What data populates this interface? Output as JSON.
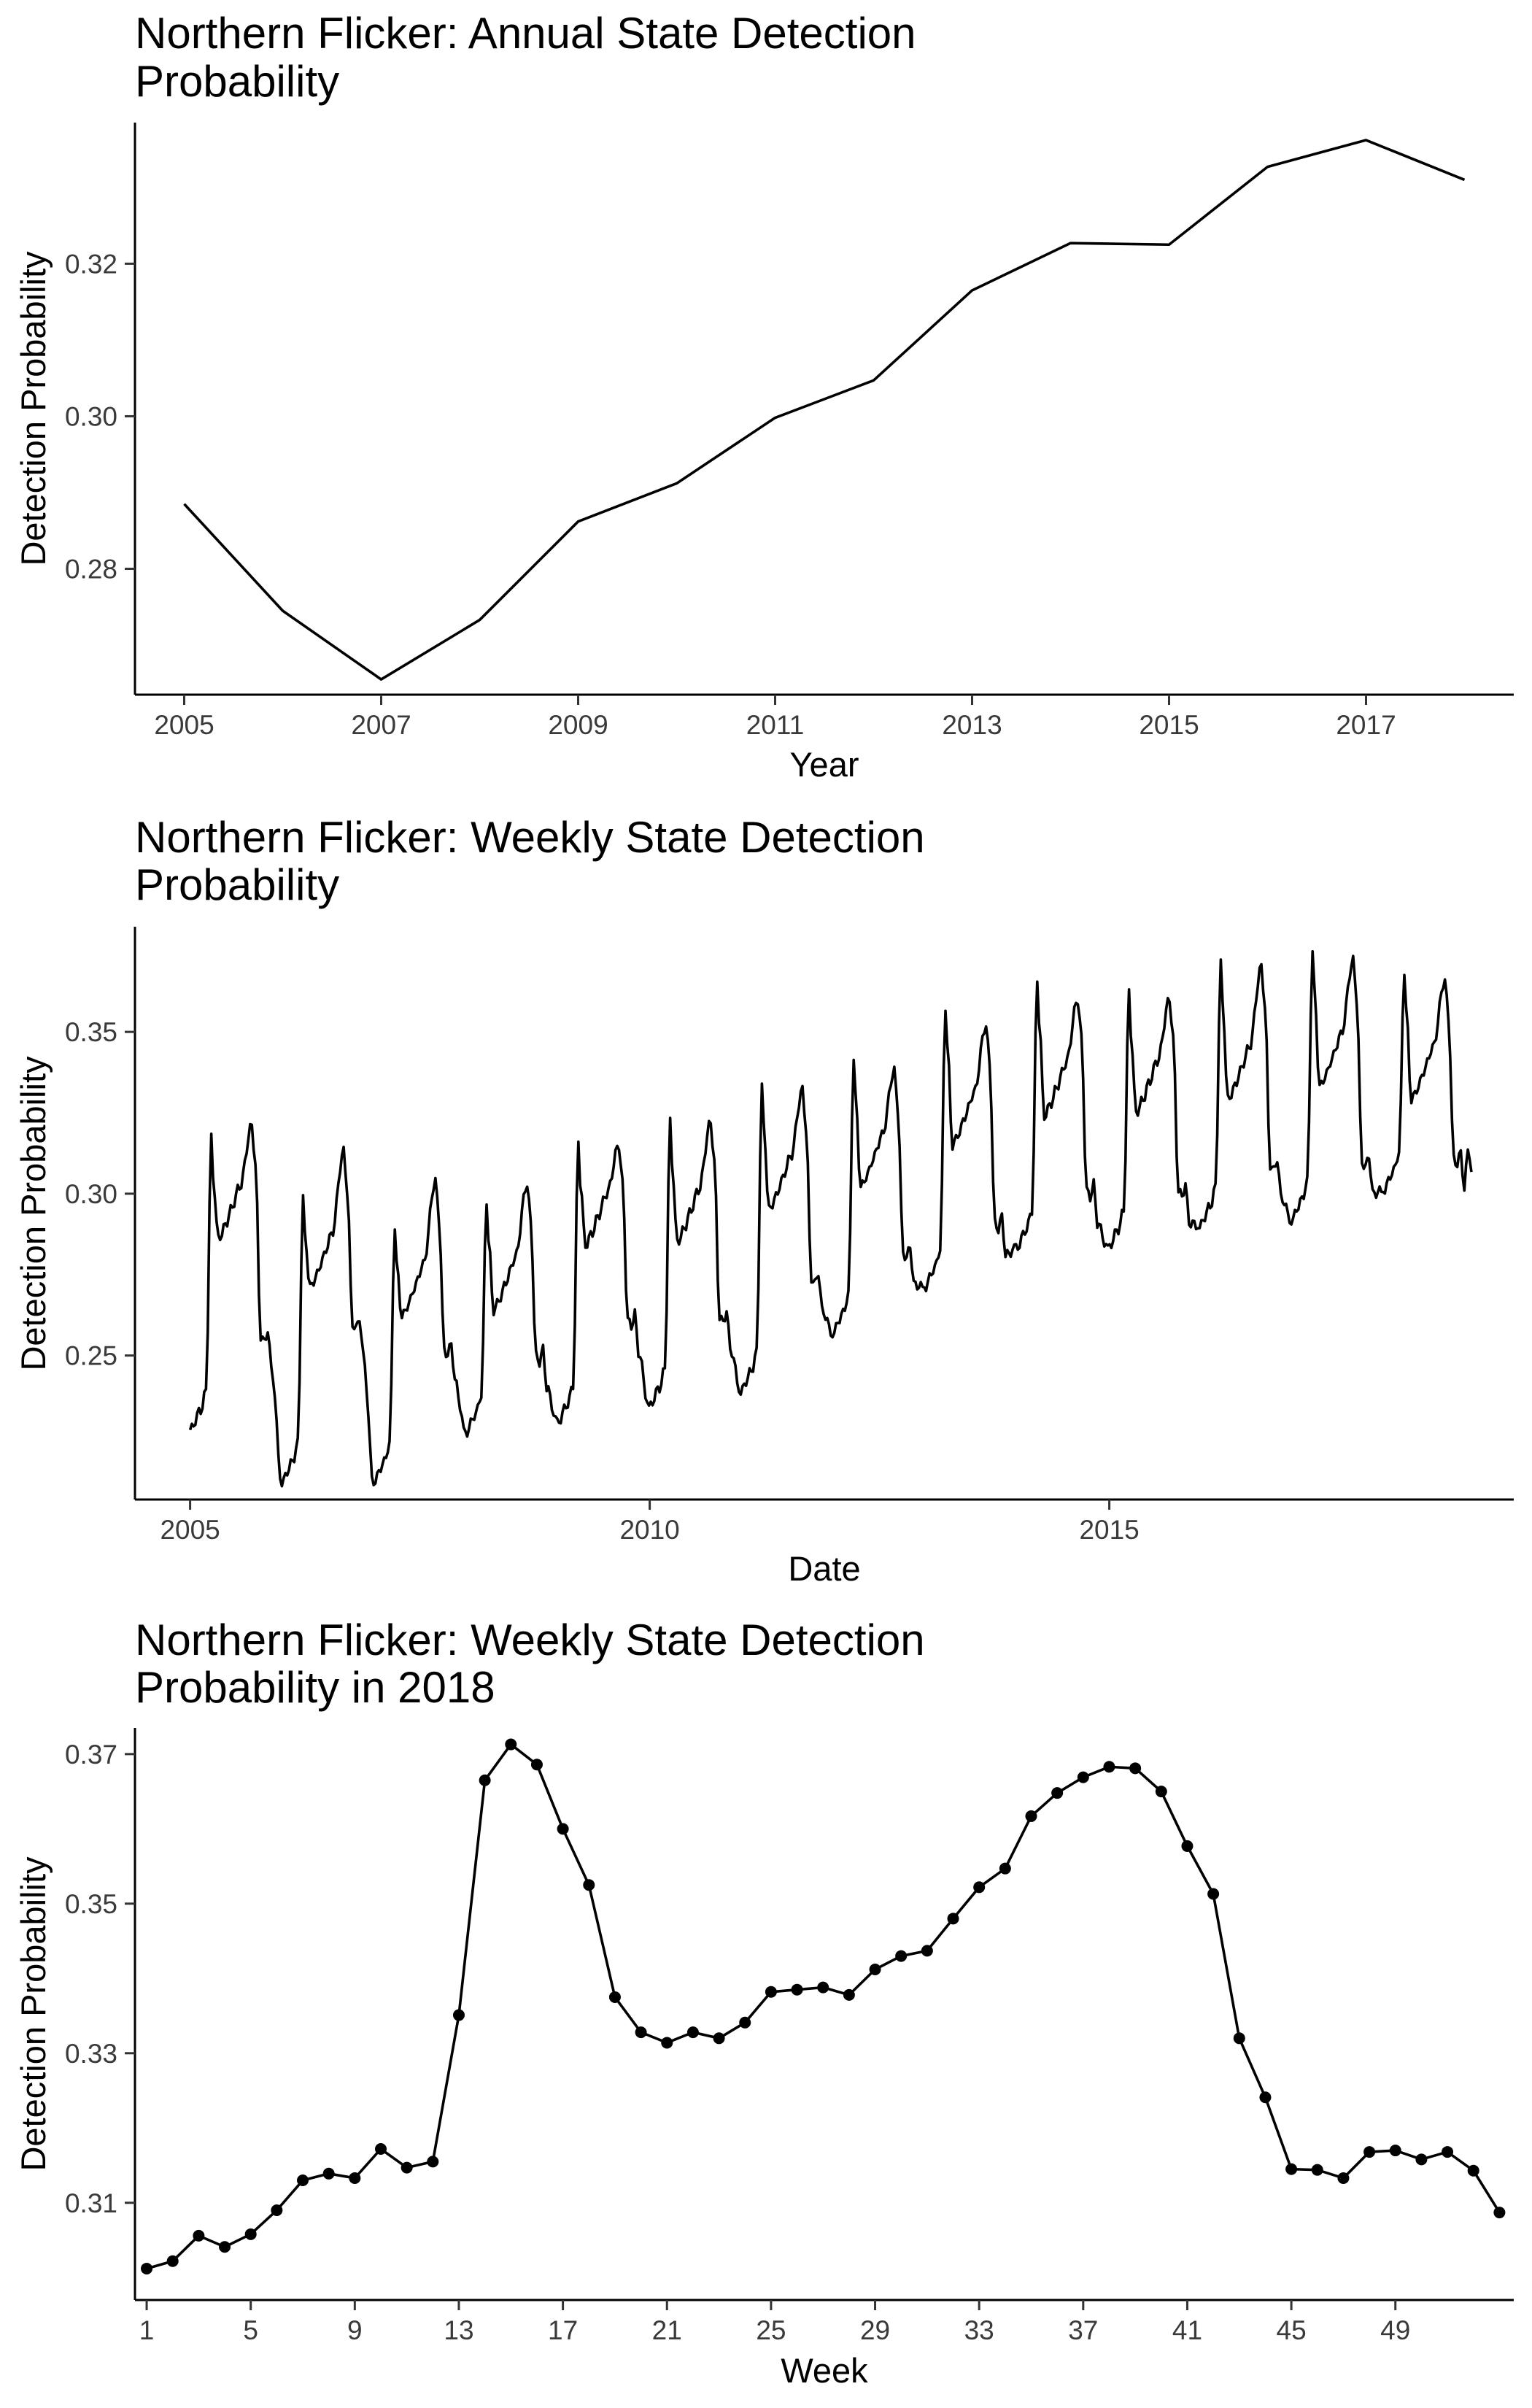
{
  "chart_data": [
    {
      "type": "line",
      "title": "Northern Flicker: Annual State Detection Probability",
      "title_lines": [
        "Northern Flicker: Annual State Detection",
        "Probability"
      ],
      "xlabel": "Year",
      "ylabel": "Detection Probability",
      "x": [
        2005,
        2006,
        2007,
        2008,
        2009,
        2010,
        2011,
        2012,
        2013,
        2014,
        2015,
        2016,
        2017,
        2018
      ],
      "values": [
        0.2885,
        0.2745,
        0.2655,
        0.2733,
        0.2862,
        0.2912,
        0.2998,
        0.3047,
        0.3165,
        0.3227,
        0.3225,
        0.3327,
        0.3362,
        0.331
      ],
      "xlim": [
        2004.5,
        2018.5
      ],
      "ylim": [
        0.2635,
        0.3385
      ],
      "xticks": [
        2005,
        2007,
        2009,
        2011,
        2013,
        2015,
        2017
      ],
      "yticks": [
        0.28,
        0.3,
        0.32
      ],
      "ytick_labels": [
        "0.28",
        "0.30",
        "0.32"
      ],
      "grid": false
    },
    {
      "type": "line",
      "title": "Northern Flicker: Weekly State Detection Probability",
      "title_lines": [
        "Northern Flicker: Weekly State Detection",
        "Probability"
      ],
      "xlabel": "Date",
      "ylabel": "Detection Probability",
      "x_start": 2005.0,
      "x_step": 0.0192,
      "annual_minimum": [
        0.227,
        0.211,
        0.211,
        0.226,
        0.229,
        0.234,
        0.239,
        0.257,
        0.271,
        0.283,
        0.283,
        0.29,
        0.292,
        0.301
      ],
      "spring_peak": [
        0.317,
        0.299,
        0.29,
        0.298,
        0.316,
        0.322,
        0.333,
        0.342,
        0.358,
        0.366,
        0.362,
        0.371,
        0.375,
        0.369
      ],
      "midyear_trough": [
        0.286,
        0.271,
        0.262,
        0.264,
        0.284,
        0.285,
        0.295,
        0.302,
        0.315,
        0.324,
        0.325,
        0.329,
        0.333,
        0.329
      ],
      "autumn_peak": [
        0.321,
        0.313,
        0.304,
        0.303,
        0.315,
        0.322,
        0.332,
        0.338,
        0.352,
        0.36,
        0.36,
        0.37,
        0.372,
        0.366
      ],
      "late_season_shoulder": [
        0.256,
        0.26,
        0.252,
        0.25,
        0.261,
        0.262,
        0.274,
        0.282,
        0.291,
        0.301,
        0.301,
        0.309,
        0.31,
        0.311
      ],
      "final_value": 0.306,
      "xlim": [
        2004.4,
        2019.4
      ],
      "ylim": [
        0.2055,
        0.3825
      ],
      "xticks": [
        2005,
        2010,
        2015
      ],
      "yticks": [
        0.25,
        0.3,
        0.35
      ],
      "ytick_labels": [
        "0.25",
        "0.30",
        "0.35"
      ],
      "grid": false
    },
    {
      "type": "line",
      "title": "Northern Flicker: Weekly State Detection Probability in 2018",
      "title_lines": [
        "Northern Flicker: Weekly State Detection",
        "Probability in 2018"
      ],
      "xlabel": "Week",
      "ylabel": "Detection Probability",
      "markers": true,
      "x": [
        1,
        2,
        3,
        4,
        5,
        6,
        7,
        8,
        9,
        10,
        11,
        12,
        13,
        14,
        15,
        16,
        17,
        18,
        19,
        20,
        21,
        22,
        23,
        24,
        25,
        26,
        27,
        28,
        29,
        30,
        31,
        32,
        33,
        34,
        35,
        36,
        37,
        38,
        39,
        40,
        41,
        42,
        43,
        44,
        45,
        46,
        47,
        48,
        49,
        50,
        51,
        52,
        53
      ],
      "values": [
        0.3012,
        0.3022,
        0.3056,
        0.3041,
        0.3058,
        0.309,
        0.313,
        0.3139,
        0.3133,
        0.3172,
        0.3147,
        0.3155,
        0.3351,
        0.3665,
        0.3713,
        0.3686,
        0.36,
        0.3525,
        0.3375,
        0.3328,
        0.3314,
        0.3328,
        0.332,
        0.3341,
        0.3382,
        0.3385,
        0.3388,
        0.3378,
        0.3412,
        0.343,
        0.3437,
        0.348,
        0.3522,
        0.3547,
        0.3617,
        0.3648,
        0.3669,
        0.3683,
        0.3681,
        0.365,
        0.3577,
        0.3513,
        0.332,
        0.3241,
        0.3145,
        0.3144,
        0.3133,
        0.3168,
        0.317,
        0.3158,
        0.3168,
        0.3143,
        0.3087
      ],
      "xlim": [
        0.55,
        53.55
      ],
      "ylim": [
        0.297,
        0.3735
      ],
      "xticks": [
        1,
        5,
        9,
        13,
        17,
        21,
        25,
        29,
        33,
        37,
        41,
        45,
        49
      ],
      "yticks": [
        0.31,
        0.33,
        0.35,
        0.37
      ],
      "ytick_labels": [
        "0.31",
        "0.33",
        "0.35",
        "0.37"
      ],
      "grid": false
    }
  ]
}
